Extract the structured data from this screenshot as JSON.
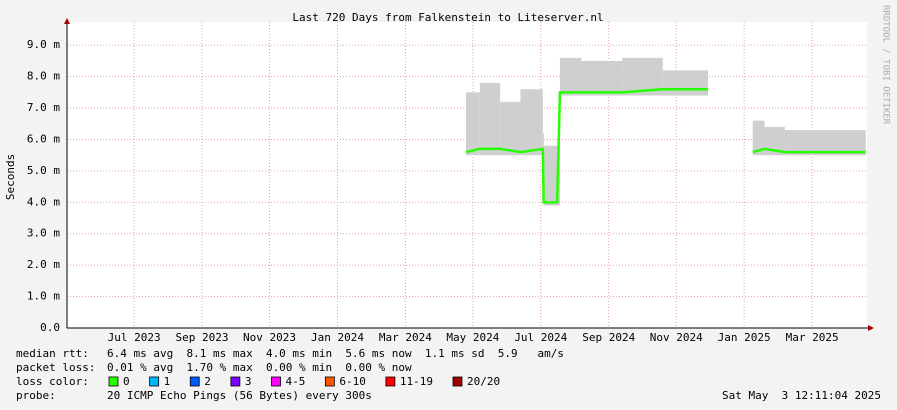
{
  "chart_data": {
    "type": "line",
    "title": "Last 720 Days from Falkenstein to Liteserver.nl",
    "y_label": "Seconds",
    "watermark": "RRDTOOL / TOBI OETIKER",
    "xlim": [
      2023.335,
      2025.302
    ],
    "ylim": [
      0,
      0.00974
    ],
    "grid": true,
    "xticks": [
      {
        "value": 2023.5,
        "label": "Jul 2023"
      },
      {
        "value": 2023.667,
        "label": "Sep 2023"
      },
      {
        "value": 2023.833,
        "label": "Nov 2023"
      },
      {
        "value": 2024.0,
        "label": "Jan 2024"
      },
      {
        "value": 2024.167,
        "label": "Mar 2024"
      },
      {
        "value": 2024.333,
        "label": "May 2024"
      },
      {
        "value": 2024.5,
        "label": "Jul 2024"
      },
      {
        "value": 2024.667,
        "label": "Sep 2024"
      },
      {
        "value": 2024.833,
        "label": "Nov 2024"
      },
      {
        "value": 2025.0,
        "label": "Jan 2025"
      },
      {
        "value": 2025.167,
        "label": "Mar 2025"
      }
    ],
    "yticks": [
      {
        "value": 0,
        "label": "0.0"
      },
      {
        "value": 0.001,
        "label": "1.0 m"
      },
      {
        "value": 0.002,
        "label": "2.0 m"
      },
      {
        "value": 0.003,
        "label": "3.0 m"
      },
      {
        "value": 0.004,
        "label": "4.0 m"
      },
      {
        "value": 0.005,
        "label": "5.0 m"
      },
      {
        "value": 0.006,
        "label": "6.0 m"
      },
      {
        "value": 0.007,
        "label": "7.0 m"
      },
      {
        "value": 0.008,
        "label": "8.0 m"
      },
      {
        "value": 0.009,
        "label": "9.0 m"
      }
    ],
    "x": [
      2024.316,
      2024.35,
      2024.4,
      2024.45,
      2024.505,
      2024.507,
      2024.54,
      2024.547,
      2024.6,
      2024.7,
      2024.8,
      2024.911,
      2024.96,
      2025.021,
      2025.05,
      2025.1,
      2025.2,
      2025.299
    ],
    "series": [
      {
        "name": "median rtt:",
        "color": "#26ff00",
        "values": [
          0.0056,
          0.0057,
          0.0057,
          0.0056,
          0.0057,
          0.004,
          0.004,
          0.0075,
          0.0075,
          0.0075,
          0.0076,
          0.0076,
          null,
          0.0056,
          0.0057,
          0.0056,
          0.0056,
          0.0056
        ]
      }
    ],
    "smoke": {
      "color": "#cfcfcf",
      "low": [
        0.0055,
        0.0055,
        0.0055,
        0.0055,
        0.0055,
        0.0039,
        0.0039,
        0.0074,
        0.0074,
        0.0074,
        0.0074,
        0.0074,
        null,
        0.0055,
        0.0055,
        0.0055,
        0.0055,
        0.0055
      ],
      "high": [
        0.0075,
        0.0078,
        0.0072,
        0.0076,
        0.0062,
        0.0058,
        0.0058,
        0.0086,
        0.0085,
        0.0086,
        0.0082,
        0.0081,
        null,
        0.0066,
        0.0064,
        0.0063,
        0.0063,
        0.0063
      ]
    },
    "stats": [
      {
        "label": "packet loss:",
        "text": "0.01 % avg  1.70 % max  0.00 % min  0.00 % now"
      }
    ],
    "median_stats": "6.4 ms avg  8.1 ms max  4.0 ms min  5.6 ms now  1.1 ms sd  5.9   am/s",
    "loss_colors": {
      "label": "loss color:",
      "items": [
        {
          "label": "0",
          "color": "#26ff00"
        },
        {
          "label": "1",
          "color": "#00b8ff"
        },
        {
          "label": "2",
          "color": "#0059ff"
        },
        {
          "label": "3",
          "color": "#7e00ff"
        },
        {
          "label": "4-5",
          "color": "#ff00ff"
        },
        {
          "label": "6-10",
          "color": "#ff5500"
        },
        {
          "label": "11-19",
          "color": "#ff0000"
        },
        {
          "label": "20/20",
          "color": "#a10000"
        }
      ]
    },
    "probe": {
      "label": "probe:",
      "text": "20 ICMP Echo Pings (56 Bytes) every 300s"
    },
    "timestamp": "Sat May  3 12:11:04 2025"
  }
}
